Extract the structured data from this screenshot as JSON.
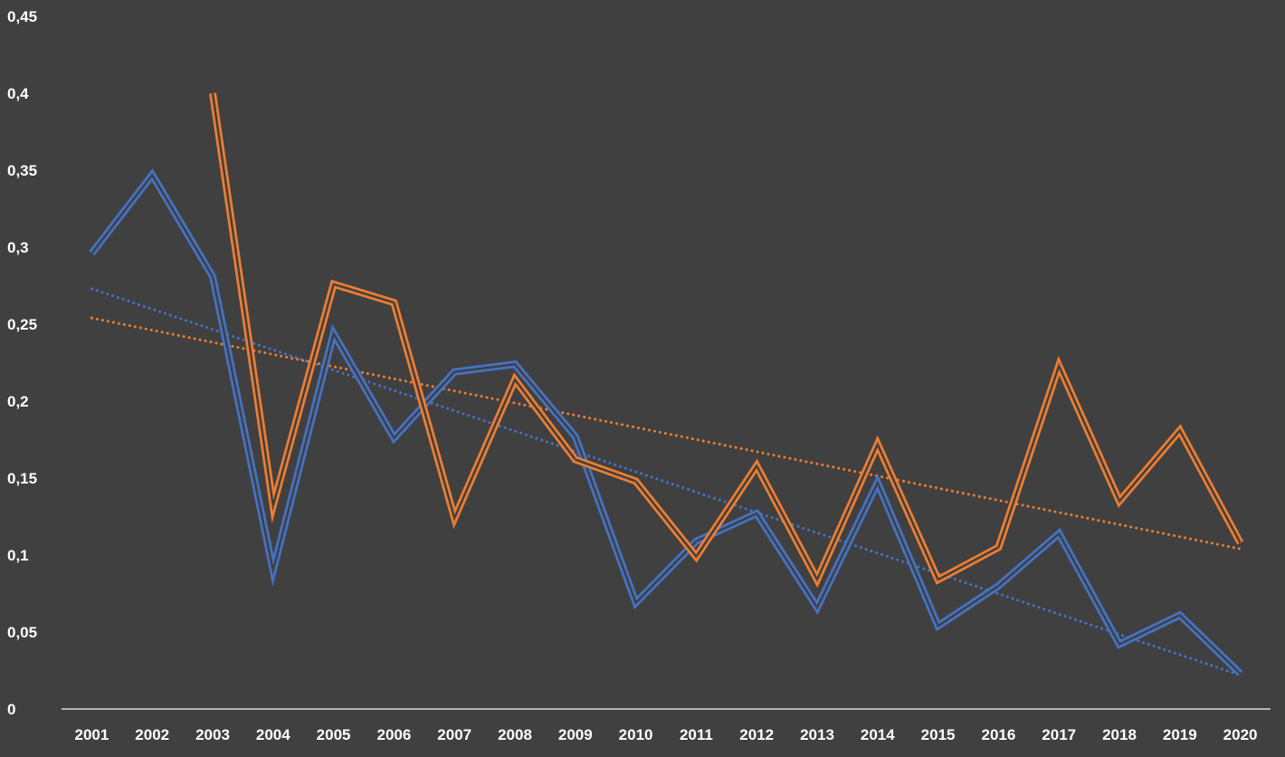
{
  "chart_data": {
    "type": "line",
    "title": "",
    "xlabel": "",
    "ylabel": "",
    "categories": [
      "2001",
      "2002",
      "2003",
      "2004",
      "2005",
      "2006",
      "2007",
      "2008",
      "2009",
      "2010",
      "2011",
      "2012",
      "2013",
      "2014",
      "2015",
      "2016",
      "2017",
      "2018",
      "2019",
      "2020"
    ],
    "y_ticks": [
      "0",
      "0,05",
      "0,1",
      "0,15",
      "0,2",
      "0,25",
      "0,3",
      "0,35",
      "0,4",
      "0,45"
    ],
    "ylim": [
      0,
      0.45
    ],
    "grid": false,
    "legend": "none",
    "background_color": "#404040",
    "axis_color": "#d9d9d9",
    "series": [
      {
        "color": "#4472c4",
        "values": [
          0.296,
          0.347,
          0.281,
          0.09,
          0.244,
          0.176,
          0.219,
          0.224,
          0.177,
          0.069,
          0.109,
          0.127,
          0.066,
          0.147,
          0.054,
          0.08,
          0.114,
          0.042,
          0.061,
          0.023
        ],
        "trendline": {
          "style": "dotted",
          "start": 0.273,
          "end": 0.022
        }
      },
      {
        "color": "#ed7d31",
        "values": [
          null,
          null,
          0.4,
          0.132,
          0.276,
          0.264,
          0.124,
          0.214,
          0.162,
          0.148,
          0.099,
          0.158,
          0.084,
          0.172,
          0.084,
          0.105,
          0.223,
          0.135,
          0.181,
          0.108
        ],
        "trendline": {
          "style": "dotted",
          "start": 0.254,
          "end": 0.104
        }
      }
    ]
  }
}
